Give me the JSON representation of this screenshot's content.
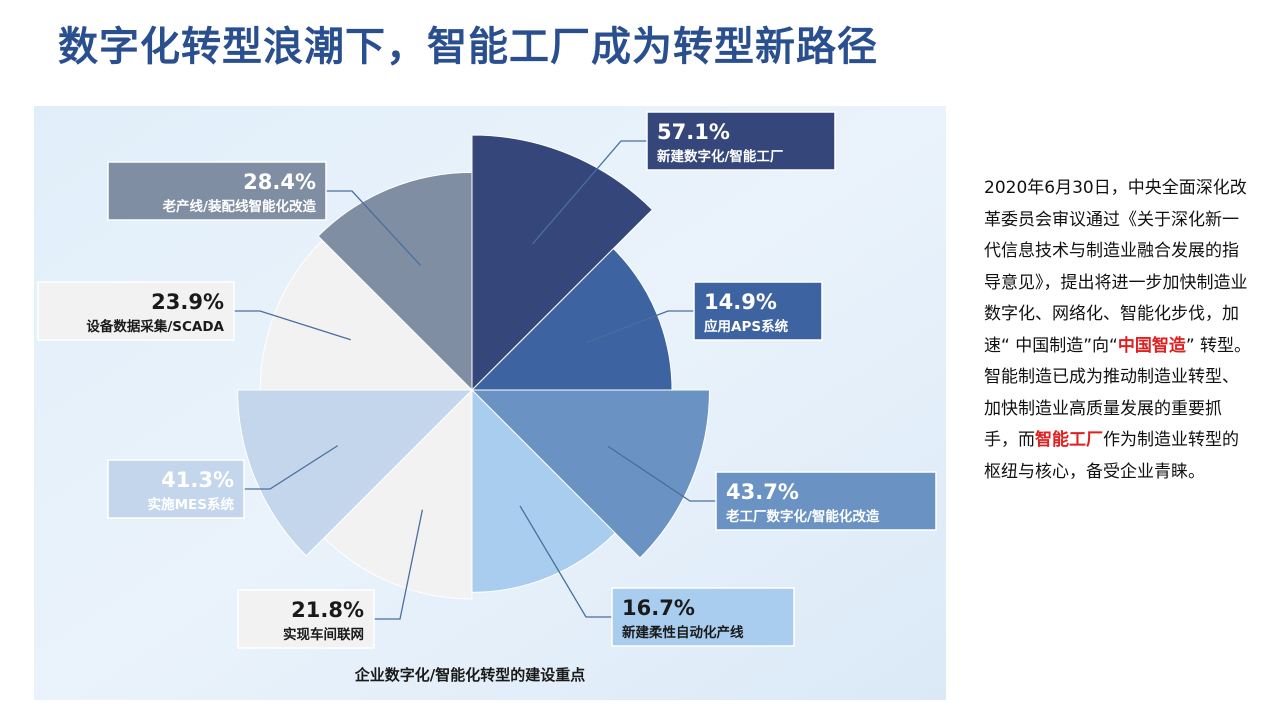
{
  "title": "数字化转型浪潮下，智能工厂成为转型新路径",
  "chart_data": {
    "type": "pie",
    "title": "企业数字化/智能化转型的建设重点",
    "categories": [
      "新建数字化/智能工厂",
      "应用APS系统",
      "老工厂数字化/智能化改造",
      "新建柔性自动化产线",
      "实现车间联网",
      "实施MES系统",
      "设备数据采集/SCADA",
      "老产线/装配线智能化改造"
    ],
    "values": [
      57.1,
      14.9,
      43.7,
      16.7,
      21.8,
      41.3,
      23.9,
      28.4
    ],
    "value_labels": [
      "57.1%",
      "14.9%",
      "43.7%",
      "16.7%",
      "21.8%",
      "41.3%",
      "23.9%",
      "28.4%"
    ],
    "colors": [
      "#34467a",
      "#3d63a0",
      "#6a93c4",
      "#a9cdee",
      "#f2f2f2",
      "#c3d6ec",
      "#f2f2f2",
      "#7f8ea3"
    ],
    "label_text_colors": [
      "#ffffff",
      "#ffffff",
      "#ffffff",
      "#1a1a1a",
      "#1a1a1a",
      "#ffffff",
      "#1a1a1a",
      "#ffffff"
    ],
    "legend": "callout-labels"
  },
  "side_text": {
    "part1": "2020年6月30日，中央全面深化改革委员会审议通过《关于深化新一代信息技术与制造业融合发展的指导意见》，提出将进一步加快制造业数字化、网络化、智能化步伐，加速“ 中国制造”向“",
    "highlight1": "中国智造",
    "part2": "” 转型。智能制造已成为推动制造业转型、加快制造业高质量发展的重要抓手，而",
    "highlight2": "智能工厂",
    "part3": "作为制造业转型的枢纽与核心，备受企业青睐。"
  }
}
